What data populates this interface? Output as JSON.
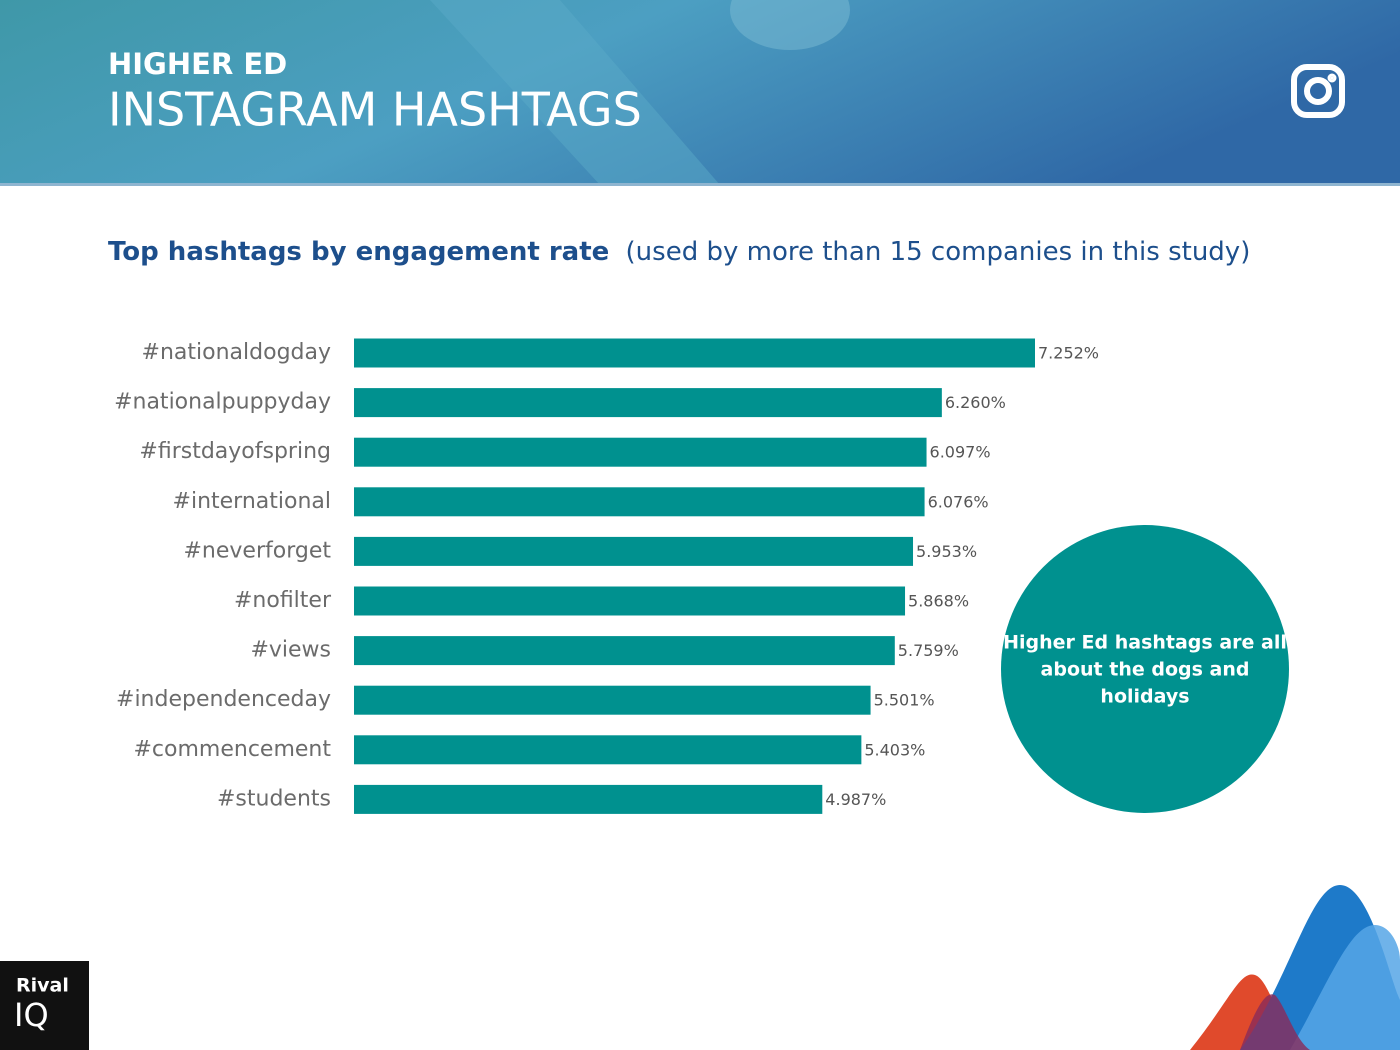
{
  "header": {
    "kicker": "HIGHER ED",
    "title": "INSTAGRAM HASHTAGS"
  },
  "chart_data": {
    "type": "hbar",
    "title": "Top hashtags by engagement rate",
    "subtitle": "(used by more than 15 companies in this study)",
    "categories": [
      "#nationaldogday",
      "#nationalpuppyday",
      "#firstdayofspring",
      "#international",
      "#neverforget",
      "#nofilter",
      "#views",
      "#independenceday",
      "#commencement",
      "#students"
    ],
    "values": [
      7.252,
      6.26,
      6.097,
      6.076,
      5.953,
      5.868,
      5.759,
      5.501,
      5.403,
      4.987
    ],
    "value_labels": [
      "7.252%",
      "6.260%",
      "6.097%",
      "6.076%",
      "5.953%",
      "5.868%",
      "5.759%",
      "5.501%",
      "5.403%",
      "4.987%"
    ],
    "color": "#00918f",
    "annotation": [
      "Higher Ed hashtags are all",
      "about the dogs and",
      "holidays"
    ]
  },
  "logo": [
    "Rival",
    "IQ"
  ]
}
